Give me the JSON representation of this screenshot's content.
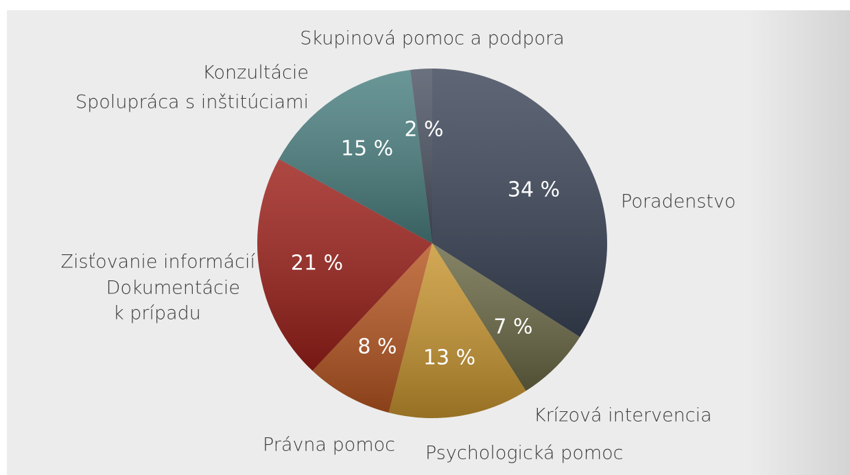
{
  "chart_data": {
    "type": "pie",
    "categories": [
      [
        "Poradenstvo"
      ],
      [
        "Krízová intervencia"
      ],
      [
        "Psychologická pomoc"
      ],
      [
        "Právna pomoc"
      ],
      [
        "Zisťovanie informácií",
        "Dokumentácie",
        "k prípadu"
      ],
      [
        "Konzultácie",
        "Spolupráca s inštitúciami"
      ],
      [
        "Skupinová pomoc a podpora"
      ]
    ],
    "values": [
      34,
      7,
      13,
      8,
      21,
      15,
      2
    ],
    "value_labels": [
      "34 %",
      "7 %",
      "13 %",
      "8 %",
      "21 %",
      "15 %",
      "2 %"
    ],
    "colors": [
      "#3b4558",
      "#6a6844",
      "#c8952f",
      "#b65520",
      "#9c1f19",
      "#4a7f80",
      "#4b5262"
    ]
  }
}
